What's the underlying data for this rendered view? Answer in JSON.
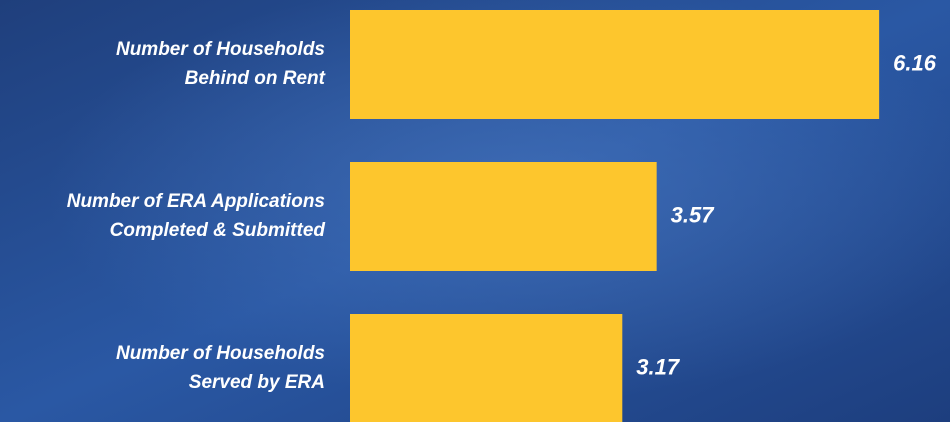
{
  "chart_data": {
    "type": "barh",
    "categories": [
      [
        "Number of Households",
        "Behind on Rent"
      ],
      [
        "Number of ERA Applications",
        "Completed & Submitted"
      ],
      [
        "Number of Households",
        "Served by ERA"
      ]
    ],
    "values": [
      6.16,
      3.57,
      3.17
    ],
    "color": "#fdc62d"
  }
}
